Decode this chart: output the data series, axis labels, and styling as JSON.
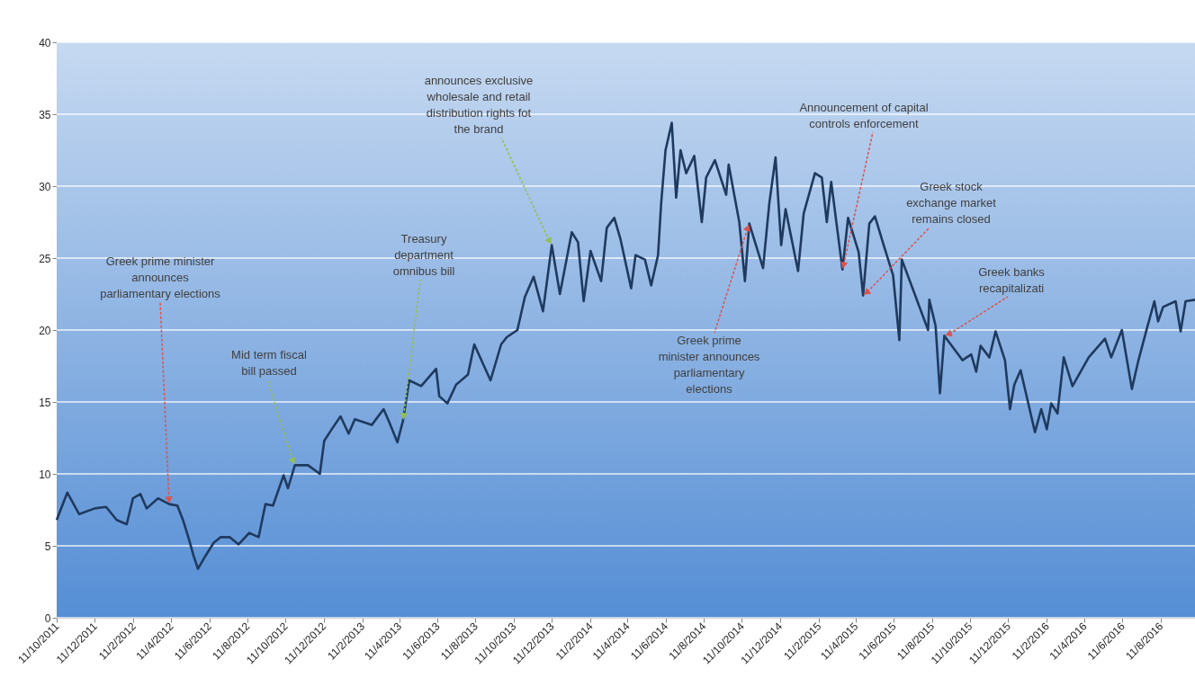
{
  "chart_data": {
    "type": "line",
    "x": [
      "2011-10-11",
      "2011-10-28",
      "2011-11-16",
      "2011-12-11",
      "2011-12-29",
      "2012-01-15",
      "2012-01-31",
      "2012-02-10",
      "2012-02-22",
      "2012-03-03",
      "2012-03-21",
      "2012-04-08",
      "2012-04-21",
      "2012-04-30",
      "2012-05-10",
      "2012-05-17",
      "2012-05-24",
      "2012-06-05",
      "2012-06-18",
      "2012-06-29",
      "2012-07-14",
      "2012-07-28",
      "2012-08-14",
      "2012-08-29",
      "2012-09-09",
      "2012-09-21",
      "2012-10-08",
      "2012-10-15",
      "2012-10-26",
      "2012-11-16",
      "2012-12-05",
      "2012-12-12",
      "2012-12-24",
      "2013-01-07",
      "2013-01-20",
      "2013-01-30",
      "2013-02-26",
      "2013-03-17",
      "2013-03-26",
      "2013-04-08",
      "2013-04-17",
      "2013-04-27",
      "2013-05-16",
      "2013-06-09",
      "2013-06-14",
      "2013-06-27",
      "2013-07-11",
      "2013-07-30",
      "2013-08-09",
      "2013-09-04",
      "2013-09-21",
      "2013-09-30",
      "2013-10-17",
      "2013-10-29",
      "2013-11-12",
      "2013-11-27",
      "2013-12-11",
      "2013-12-24",
      "2014-01-12",
      "2014-01-22",
      "2014-01-31",
      "2014-02-11",
      "2014-02-28",
      "2014-03-09",
      "2014-03-21",
      "2014-03-31",
      "2014-04-17",
      "2014-04-24",
      "2014-05-09",
      "2014-05-19",
      "2014-05-30",
      "2014-06-04",
      "2014-06-11",
      "2014-06-21",
      "2014-06-28",
      "2014-07-05",
      "2014-07-14",
      "2014-07-27",
      "2014-08-08",
      "2014-08-15",
      "2014-08-29",
      "2014-09-16",
      "2014-09-20",
      "2014-10-07",
      "2014-10-16",
      "2014-10-23",
      "2014-11-14",
      "2014-11-24",
      "2014-12-04",
      "2014-12-13",
      "2014-12-20",
      "2015-01-09",
      "2015-01-18",
      "2015-02-05",
      "2015-02-16",
      "2015-02-24",
      "2015-03-03",
      "2015-03-21",
      "2015-03-30",
      "2015-04-16",
      "2015-04-23",
      "2015-05-03",
      "2015-05-12",
      "2015-05-26",
      "2015-06-10",
      "2015-06-20",
      "2015-06-24",
      "2015-08-05",
      "2015-08-07",
      "2015-08-17",
      "2015-08-24",
      "2015-08-31",
      "2015-09-29",
      "2015-10-13",
      "2015-10-21",
      "2015-10-28",
      "2015-11-11",
      "2015-11-21",
      "2015-12-06",
      "2015-12-14",
      "2015-12-21",
      "2015-12-31",
      "2016-01-23",
      "2016-02-02",
      "2016-02-11",
      "2016-02-18",
      "2016-02-28",
      "2016-03-09",
      "2016-03-23",
      "2016-04-18",
      "2016-05-14",
      "2016-05-24",
      "2016-06-10",
      "2016-06-26",
      "2016-07-06",
      "2016-07-20",
      "2016-08-01",
      "2016-08-07",
      "2016-08-15",
      "2016-09-04",
      "2016-09-12",
      "2016-09-20",
      "2016-10-05"
    ],
    "series": [
      {
        "color": "#1f3a5f",
        "values": [
          6.8,
          8.7,
          7.2,
          7.6,
          7.7,
          6.8,
          6.5,
          8.3,
          8.6,
          7.6,
          8.3,
          7.9,
          7.8,
          6.8,
          5.4,
          4.3,
          3.4,
          4.3,
          5.2,
          5.6,
          5.6,
          5.1,
          5.9,
          5.6,
          7.9,
          7.8,
          9.9,
          9.0,
          10.6,
          10.6,
          10.0,
          12.3,
          13.1,
          14.0,
          12.8,
          13.8,
          13.4,
          14.5,
          13.6,
          12.2,
          13.7,
          16.5,
          16.1,
          17.3,
          15.4,
          14.9,
          16.2,
          16.9,
          19.0,
          16.5,
          19.0,
          19.5,
          20.0,
          22.3,
          23.7,
          21.3,
          25.9,
          22.5,
          26.8,
          26.1,
          22.0,
          25.5,
          23.4,
          27.1,
          27.8,
          26.3,
          22.9,
          25.2,
          24.9,
          23.1,
          25.2,
          28.8,
          32.5,
          34.4,
          29.2,
          32.5,
          30.9,
          32.1,
          27.5,
          30.6,
          31.8,
          29.4,
          31.5,
          27.5,
          23.4,
          27.4,
          24.3,
          28.8,
          32.0,
          25.9,
          28.4,
          24.1,
          28.1,
          30.9,
          30.6,
          27.5,
          30.3,
          24.2,
          27.8,
          25.4,
          22.4,
          27.4,
          27.9,
          25.9,
          23.8,
          19.3,
          24.9,
          20.0,
          22.1,
          20.3,
          15.6,
          19.6,
          17.9,
          18.3,
          17.1,
          18.9,
          18.1,
          19.9,
          17.9,
          14.5,
          16.2,
          17.2,
          12.9,
          14.5,
          13.1,
          14.9,
          14.2,
          18.1,
          16.1,
          18.1,
          19.4,
          18.1,
          20.0,
          15.9,
          17.8,
          20.1,
          22.0,
          20.6,
          21.6,
          22.0,
          19.9,
          22.0,
          22.1
        ]
      }
    ],
    "xlim": [
      "2011-10-11",
      "2016-10-05"
    ],
    "xticks": [
      {
        "value": "2011-10-11",
        "label": "11/10/2011"
      },
      {
        "value": "2011-12-11",
        "label": "11/12/2011"
      },
      {
        "value": "2012-02-11",
        "label": "11/2/2012"
      },
      {
        "value": "2012-04-11",
        "label": "11/4/2012"
      },
      {
        "value": "2012-06-11",
        "label": "11/6/2012"
      },
      {
        "value": "2012-08-11",
        "label": "11/8/2012"
      },
      {
        "value": "2012-10-11",
        "label": "11/10/2012"
      },
      {
        "value": "2012-12-11",
        "label": "11/12/2012"
      },
      {
        "value": "2013-02-11",
        "label": "11/2/2013"
      },
      {
        "value": "2013-04-11",
        "label": "11/4/2013"
      },
      {
        "value": "2013-06-11",
        "label": "11/6/2013"
      },
      {
        "value": "2013-08-11",
        "label": "11/8/2013"
      },
      {
        "value": "2013-10-11",
        "label": "11/10/2013"
      },
      {
        "value": "2013-12-11",
        "label": "11/12/2013"
      },
      {
        "value": "2014-02-11",
        "label": "11/2/2014"
      },
      {
        "value": "2014-04-11",
        "label": "11/4/2014"
      },
      {
        "value": "2014-06-11",
        "label": "11/6/2014"
      },
      {
        "value": "2014-08-11",
        "label": "11/8/2014"
      },
      {
        "value": "2014-10-11",
        "label": "11/10/2014"
      },
      {
        "value": "2014-12-11",
        "label": "11/12/2014"
      },
      {
        "value": "2015-02-11",
        "label": "11/2/2015"
      },
      {
        "value": "2015-04-11",
        "label": "11/4/2015"
      },
      {
        "value": "2015-06-11",
        "label": "11/6/2015"
      },
      {
        "value": "2015-08-11",
        "label": "11/8/2015"
      },
      {
        "value": "2015-10-11",
        "label": "11/10/2015"
      },
      {
        "value": "2015-12-11",
        "label": "11/12/2015"
      },
      {
        "value": "2016-02-11",
        "label": "11/2/2016"
      },
      {
        "value": "2016-04-11",
        "label": "11/4/2016"
      },
      {
        "value": "2016-06-11",
        "label": "11/6/2016"
      },
      {
        "value": "2016-08-11",
        "label": "11/8/2016"
      }
    ],
    "ylim": [
      0,
      40
    ],
    "yticks": [
      0,
      5,
      10,
      15,
      20,
      25,
      30,
      35,
      40
    ],
    "grid": "y",
    "marker": "none",
    "annotations": [
      {
        "text": "Greek prime minister announces parliamentary elections",
        "x": "2012-04-08",
        "y": 7.9
      },
      {
        "text": "Mid term fiscal bill passed",
        "x": "2012-10-26",
        "y": 10.6
      },
      {
        "text": "Treasury department omnibus bill",
        "x": "2013-04-17",
        "y": 13.7
      },
      {
        "text": "announces exclusive wholesale and retail distribution rights fot the brand",
        "x": "2013-12-11",
        "y": 25.9
      },
      {
        "text": "Greek prime minister announces parliamentary elections",
        "x": "2014-10-23",
        "y": 27.4
      },
      {
        "text": "Announcement  of capital controls enforcement",
        "x": "2015-03-21",
        "y": 24.2
      },
      {
        "text": "Greek stock exchange market remains closed",
        "x": "2015-04-23",
        "y": 22.4
      },
      {
        "text": "Greek banks recapitalizati",
        "x": "2015-08-31",
        "y": 19.6
      }
    ]
  }
}
